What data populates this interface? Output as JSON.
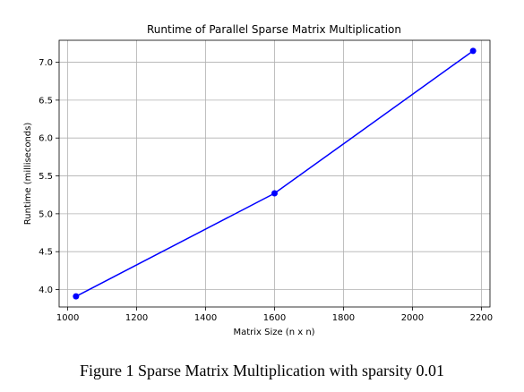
{
  "chart_data": {
    "type": "line",
    "title": "Runtime of Parallel Sparse Matrix Multiplication",
    "xlabel": "Matrix Size (n x n)",
    "ylabel": "Runtime (milliseconds)",
    "xlim": [
      975,
      2225
    ],
    "ylim": [
      3.77,
      7.29
    ],
    "xticks": [
      1000,
      1200,
      1400,
      1600,
      1800,
      2000,
      2200
    ],
    "xtick_labels": [
      "1000",
      "1200",
      "1400",
      "1600",
      "1800",
      "2000",
      "2200"
    ],
    "yticks": [
      4.0,
      4.5,
      5.0,
      5.5,
      6.0,
      6.5,
      7.0
    ],
    "ytick_labels": [
      "4.0",
      "4.5",
      "5.0",
      "5.5",
      "6.0",
      "6.5",
      "7.0"
    ],
    "grid": true,
    "series": [
      {
        "x": [
          1024,
          1600,
          2176
        ],
        "y": [
          3.91,
          5.27,
          7.15
        ],
        "color": "#0000ff",
        "marker": "circle"
      }
    ]
  },
  "caption": "Figure 1 Sparse Matrix Multiplication with sparsity 0.01"
}
